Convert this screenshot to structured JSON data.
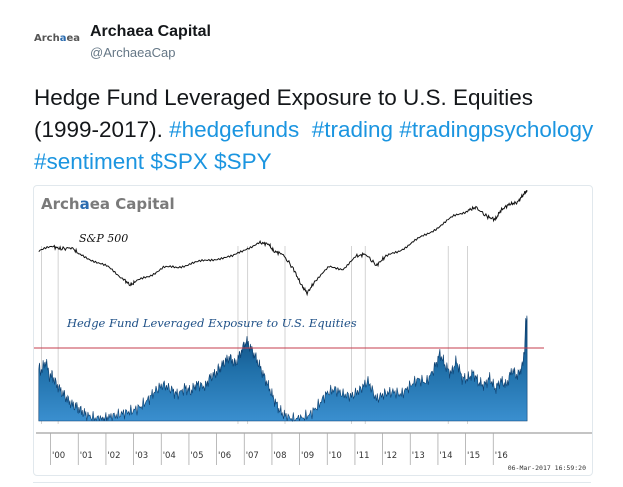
{
  "account": {
    "name": "Archaea Capital",
    "handle": "@ArchaeaCap",
    "avatar_text_a": "Arch",
    "avatar_text_b": "a",
    "avatar_text_c": "ea"
  },
  "tweet": {
    "text": "Hedge Fund Leveraged Exposure to U.S. Equities (1999-2017).",
    "hashtags": [
      "#hedgefunds",
      "#trading",
      "#tradingpsychology",
      "#sentiment",
      "$SPX",
      "$SPY"
    ]
  },
  "colors": {
    "link": "#1b95e0",
    "area_fill": "#1f6fa8",
    "area_dark": "#0b3f70",
    "threshold_line": "#c43c4c",
    "sp_line": "#111111",
    "watermark_accent": "#2b6cb0"
  },
  "chart_data": {
    "type": "area",
    "watermark": "Archaea Capital",
    "watermark_parts": [
      "Arch",
      "a",
      "ea Capital"
    ],
    "series": [
      {
        "name": "S&P 500",
        "x": [
          1999.5,
          2000,
          2000.3,
          2000.7,
          2001,
          2001.5,
          2002,
          2002.5,
          2002.8,
          2003,
          2003.5,
          2004,
          2004.5,
          2005,
          2005.5,
          2006,
          2006.5,
          2007,
          2007.5,
          2007.8,
          2008,
          2008.3,
          2008.7,
          2009,
          2009.2,
          2009.5,
          2010,
          2010.5,
          2011,
          2011.3,
          2011.7,
          2012,
          2012.5,
          2013,
          2013.5,
          2014,
          2014.5,
          2015,
          2015.3,
          2015.7,
          2016,
          2016.2,
          2016.5,
          2016.8,
          2017,
          2017.15
        ],
        "values": [
          1380,
          1460,
          1420,
          1440,
          1320,
          1230,
          1120,
          950,
          830,
          880,
          980,
          1120,
          1110,
          1190,
          1220,
          1270,
          1290,
          1430,
          1520,
          1500,
          1380,
          1340,
          1100,
          820,
          700,
          900,
          1120,
          1100,
          1300,
          1340,
          1150,
          1280,
          1380,
          1530,
          1650,
          1800,
          1950,
          2050,
          2100,
          1950,
          1900,
          2050,
          2150,
          2180,
          2300,
          2380
        ]
      },
      {
        "name": "Hedge Fund Leveraged Exposure to U.S. Equities",
        "x": [
          1999.5,
          1999.6,
          1999.75,
          1999.9,
          2000,
          2000.1,
          2000.3,
          2000.5,
          2000.7,
          2000.9,
          2001,
          2001.2,
          2001.5,
          2001.8,
          2002,
          2002.3,
          2002.6,
          2002.9,
          2003.2,
          2003.5,
          2003.7,
          2004,
          2004.3,
          2004.5,
          2004.8,
          2005,
          2005.2,
          2005.5,
          2005.7,
          2005.9,
          2006,
          2006.2,
          2006.4,
          2006.6,
          2006.8,
          2007,
          2007.2,
          2007.4,
          2007.6,
          2007.8,
          2008,
          2008.2,
          2008.4,
          2008.7,
          2009,
          2009.3,
          2009.6,
          2009.9,
          2010.2,
          2010.5,
          2010.8,
          2011.1,
          2011.4,
          2011.7,
          2012,
          2012.3,
          2012.6,
          2012.9,
          2013.2,
          2013.5,
          2013.8,
          2014,
          2014.2,
          2014.4,
          2014.6,
          2014.8,
          2015,
          2015.2,
          2015.4,
          2015.6,
          2015.8,
          2016,
          2016.2,
          2016.4,
          2016.6,
          2016.8,
          2017,
          2017.05,
          2017.1,
          2017.15
        ],
        "values": [
          0.58,
          0.55,
          0.66,
          0.48,
          0.5,
          0.42,
          0.33,
          0.25,
          0.18,
          0.15,
          0.12,
          0.07,
          0.03,
          0.02,
          0.04,
          0.06,
          0.09,
          0.11,
          0.16,
          0.25,
          0.33,
          0.4,
          0.34,
          0.29,
          0.36,
          0.32,
          0.41,
          0.37,
          0.48,
          0.52,
          0.56,
          0.64,
          0.7,
          0.62,
          0.75,
          0.88,
          0.78,
          0.66,
          0.52,
          0.38,
          0.24,
          0.12,
          0.05,
          0.02,
          0.03,
          0.07,
          0.17,
          0.3,
          0.35,
          0.29,
          0.27,
          0.34,
          0.44,
          0.24,
          0.3,
          0.32,
          0.29,
          0.38,
          0.46,
          0.42,
          0.58,
          0.74,
          0.6,
          0.52,
          0.66,
          0.47,
          0.46,
          0.53,
          0.42,
          0.39,
          0.47,
          0.35,
          0.44,
          0.39,
          0.56,
          0.49,
          0.62,
          0.78,
          1.09,
          1.12
        ]
      }
    ],
    "threshold": 0.8,
    "xlim": [
      1999.4,
      2017.4
    ],
    "x_tick_labels": [
      "'00",
      "'01",
      "'02",
      "'03",
      "'04",
      "'05",
      "'06",
      "'07",
      "'08",
      "'09",
      "'10",
      "'11",
      "'12",
      "'13",
      "'14",
      "'15",
      "'16"
    ],
    "x_tick_positions": [
      2000,
      2001,
      2002,
      2003,
      2004,
      2005,
      2006,
      2007,
      2008,
      2009,
      2010,
      2011,
      2012,
      2013,
      2014,
      2015,
      2016
    ],
    "annotation_vlines": [
      1999.6,
      2000.2,
      2006.7,
      2007.05,
      2008.4,
      2010.8,
      2011.3,
      2014.3,
      2015.0
    ],
    "timestamp": "06-Mar-2017 16:59:20",
    "grid": false
  }
}
